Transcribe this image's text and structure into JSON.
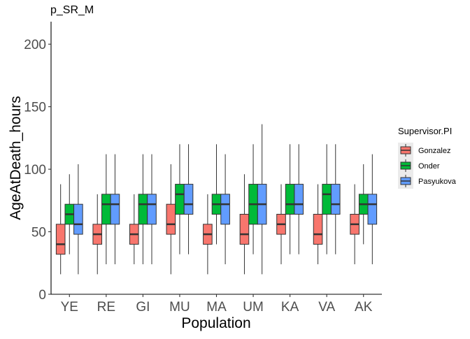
{
  "chart_data": {
    "type": "boxplot",
    "title": "p_SR_M",
    "xlabel": "Population",
    "ylabel": "AgeAtDeath_hours",
    "ylim": [
      0,
      218
    ],
    "yticks": [
      0,
      50,
      100,
      150,
      200
    ],
    "categories": [
      "YE",
      "RE",
      "GI",
      "MU",
      "MA",
      "UM",
      "KA",
      "VA",
      "AK"
    ],
    "legend": {
      "title": "Supervisor.PI",
      "position": "right"
    },
    "grid": false,
    "series": [
      {
        "name": "Gonzalez",
        "color": "#F8766D",
        "boxes": [
          {
            "min": 16,
            "q1": 32,
            "median": 40,
            "q3": 56,
            "max": 88
          },
          {
            "min": 16,
            "q1": 40,
            "median": 48,
            "q3": 56,
            "max": 80
          },
          {
            "min": 24,
            "q1": 40,
            "median": 48,
            "q3": 56,
            "max": 80
          },
          {
            "min": 16,
            "q1": 48,
            "median": 56,
            "q3": 72,
            "max": 104
          },
          {
            "min": 16,
            "q1": 40,
            "median": 48,
            "q3": 56,
            "max": 80
          },
          {
            "min": 16,
            "q1": 40,
            "median": 48,
            "q3": 64,
            "max": 96
          },
          {
            "min": 24,
            "q1": 48,
            "median": 56,
            "q3": 64,
            "max": 88
          },
          {
            "min": 24,
            "q1": 40,
            "median": 48,
            "q3": 64,
            "max": 88
          },
          {
            "min": 24,
            "q1": 48,
            "median": 56,
            "q3": 64,
            "max": 88
          }
        ]
      },
      {
        "name": "Onder",
        "color": "#00BA38",
        "boxes": [
          {
            "min": 32,
            "q1": 56,
            "median": 64,
            "q3": 72,
            "max": 96
          },
          {
            "min": 24,
            "q1": 56,
            "median": 72,
            "q3": 80,
            "max": 112
          },
          {
            "min": 24,
            "q1": 56,
            "median": 72,
            "q3": 80,
            "max": 112
          },
          {
            "min": 32,
            "q1": 64,
            "median": 80,
            "q3": 88,
            "max": 120
          },
          {
            "min": 40,
            "q1": 64,
            "median": 72,
            "q3": 80,
            "max": 120
          },
          {
            "min": 32,
            "q1": 56,
            "median": 72,
            "q3": 88,
            "max": 120
          },
          {
            "min": 32,
            "q1": 64,
            "median": 72,
            "q3": 88,
            "max": 120
          },
          {
            "min": 32,
            "q1": 64,
            "median": 80,
            "q3": 88,
            "max": 120
          },
          {
            "min": 40,
            "q1": 64,
            "median": 72,
            "q3": 80,
            "max": 104
          }
        ]
      },
      {
        "name": "Pasyukova",
        "color": "#619CFF",
        "boxes": [
          {
            "min": 16,
            "q1": 48,
            "median": 56,
            "q3": 72,
            "max": 104
          },
          {
            "min": 24,
            "q1": 56,
            "median": 72,
            "q3": 80,
            "max": 112
          },
          {
            "min": 24,
            "q1": 56,
            "median": 72,
            "q3": 80,
            "max": 112
          },
          {
            "min": 32,
            "q1": 64,
            "median": 72,
            "q3": 88,
            "max": 120
          },
          {
            "min": 24,
            "q1": 56,
            "median": 72,
            "q3": 80,
            "max": 112
          },
          {
            "min": 16,
            "q1": 56,
            "median": 72,
            "q3": 88,
            "max": 136
          },
          {
            "min": 32,
            "q1": 64,
            "median": 72,
            "q3": 88,
            "max": 120
          },
          {
            "min": 32,
            "q1": 64,
            "median": 72,
            "q3": 88,
            "max": 120
          },
          {
            "min": 24,
            "q1": 56,
            "median": 72,
            "q3": 80,
            "max": 112
          }
        ]
      }
    ]
  }
}
